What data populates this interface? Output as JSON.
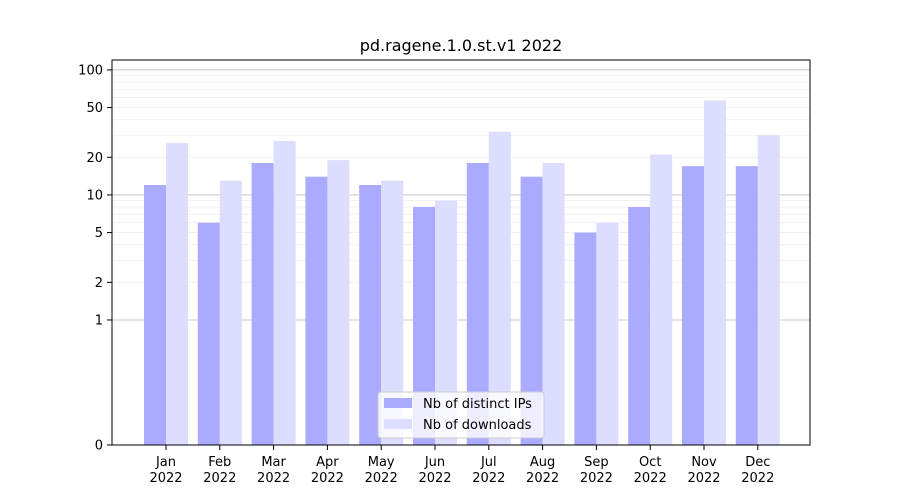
{
  "chart_data": {
    "type": "bar",
    "title": "pd.ragene.1.0.st.v1 2022",
    "xlabel": "",
    "ylabel": "",
    "categories": [
      [
        "Jan",
        "2022"
      ],
      [
        "Feb",
        "2022"
      ],
      [
        "Mar",
        "2022"
      ],
      [
        "Apr",
        "2022"
      ],
      [
        "May",
        "2022"
      ],
      [
        "Jun",
        "2022"
      ],
      [
        "Jul",
        "2022"
      ],
      [
        "Aug",
        "2022"
      ],
      [
        "Sep",
        "2022"
      ],
      [
        "Oct",
        "2022"
      ],
      [
        "Nov",
        "2022"
      ],
      [
        "Dec",
        "2022"
      ]
    ],
    "series": [
      {
        "name": "Nb of distinct IPs",
        "color": "#aaaaff",
        "values": [
          12,
          6,
          18,
          14,
          12,
          8,
          18,
          14,
          5,
          8,
          17,
          17
        ]
      },
      {
        "name": "Nb of downloads",
        "color": "#ddddff",
        "values": [
          26,
          13,
          27,
          19,
          13,
          9,
          32,
          18,
          6,
          21,
          57,
          30
        ]
      }
    ],
    "yscale": "symlog",
    "ylim": [
      0,
      120
    ],
    "yticks": [
      0,
      1,
      2,
      5,
      10,
      20,
      50,
      100
    ],
    "grid": true,
    "legend_position": "bottom-center"
  }
}
